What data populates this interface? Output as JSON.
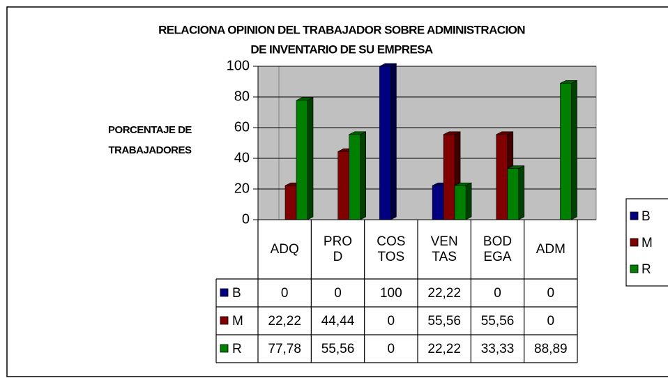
{
  "chart_data": {
    "type": "bar",
    "title": [
      "RELACIONA OPINION DEL TRABAJADOR SOBRE ADMINISTRACION",
      "DE INVENTARIO DE SU EMPRESA"
    ],
    "y_label": [
      "PORCENTAJE DE",
      "TRABAJADORES"
    ],
    "categories": [
      "ADQ",
      "PROD",
      "COSTOS",
      "VENTAS",
      "BODEGA",
      "ADM"
    ],
    "series": [
      {
        "name": "B",
        "color": "#000080",
        "values": [
          0,
          0,
          100,
          22.22,
          0,
          0
        ],
        "value_labels": [
          "0",
          "0",
          "100",
          "22,22",
          "0",
          "0"
        ]
      },
      {
        "name": "M",
        "color": "#800000",
        "values": [
          22.22,
          44.44,
          0,
          55.56,
          55.56,
          0
        ],
        "value_labels": [
          "22,22",
          "44,44",
          "0",
          "55,56",
          "55,56",
          "0"
        ]
      },
      {
        "name": "R",
        "color": "#008000",
        "values": [
          77.78,
          55.56,
          0,
          22.22,
          33.33,
          88.89
        ],
        "value_labels": [
          "77,78",
          "55,56",
          "0",
          "22,22",
          "33,33",
          "88,89"
        ]
      }
    ],
    "ylim": [
      0,
      100
    ],
    "yticks": [
      0,
      20,
      40,
      60,
      80,
      100
    ],
    "grid": true,
    "legend": "right",
    "data_table": true
  }
}
